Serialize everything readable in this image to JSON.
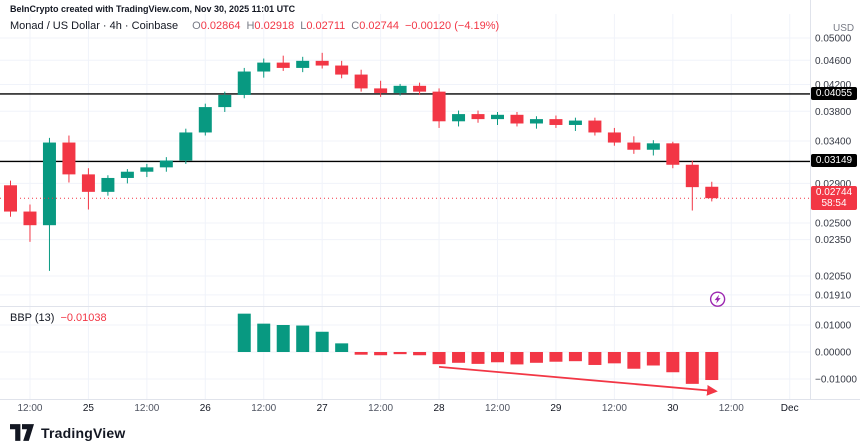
{
  "attribution": "BeInCrypto created with TradingView.com, Nov 30, 2025 11:01 UTC",
  "legend": {
    "title": "Monad / US Dollar · 4h · Coinbase",
    "o_label": "O",
    "o_value": "0.02864",
    "h_label": "H",
    "h_value": "0.02918",
    "l_label": "L",
    "l_value": "0.02711",
    "c_label": "C",
    "c_value": "0.02744",
    "change": "−0.00120 (−4.19%)"
  },
  "indicator": {
    "name": "BBP (13)",
    "value": "−0.01038"
  },
  "price_axis": {
    "currency": "USD",
    "ticks": [
      {
        "label": "0.05000",
        "price": 0.05
      },
      {
        "label": "0.04600",
        "price": 0.046
      },
      {
        "label": "0.04200",
        "price": 0.042
      },
      {
        "label": "0.03800",
        "price": 0.038
      },
      {
        "label": "0.03400",
        "price": 0.034
      },
      {
        "label": "0.02900",
        "price": 0.029
      },
      {
        "label": "0.02500",
        "price": 0.025
      },
      {
        "label": "0.02350",
        "price": 0.0235
      },
      {
        "label": "0.02050",
        "price": 0.0205
      },
      {
        "label": "0.01910",
        "price": 0.0191
      }
    ],
    "levels": [
      {
        "label": "0.04055",
        "price": 0.04055
      },
      {
        "label": "0.03149",
        "price": 0.03149
      }
    ],
    "last": {
      "label": "0.02744",
      "countdown": "58:54",
      "price": 0.02744
    }
  },
  "bbp_axis": {
    "ticks": [
      {
        "label": "0.01000",
        "value": 0.01
      },
      {
        "label": "0.00000",
        "value": 0
      },
      {
        "label": "−0.01000",
        "value": -0.01
      }
    ]
  },
  "time_axis": {
    "labels": [
      {
        "text": "12:00",
        "slot": 2,
        "major": false
      },
      {
        "text": "25",
        "slot": 5,
        "major": true
      },
      {
        "text": "12:00",
        "slot": 8,
        "major": false
      },
      {
        "text": "26",
        "slot": 11,
        "major": true
      },
      {
        "text": "12:00",
        "slot": 14,
        "major": false
      },
      {
        "text": "27",
        "slot": 17,
        "major": true
      },
      {
        "text": "12:00",
        "slot": 20,
        "major": false
      },
      {
        "text": "28",
        "slot": 23,
        "major": true
      },
      {
        "text": "12:00",
        "slot": 26,
        "major": false
      },
      {
        "text": "29",
        "slot": 29,
        "major": true
      },
      {
        "text": "12:00",
        "slot": 32,
        "major": false
      },
      {
        "text": "30",
        "slot": 35,
        "major": true
      },
      {
        "text": "12:00",
        "slot": 38,
        "major": false
      },
      {
        "text": "Dec",
        "slot": 41,
        "major": true
      }
    ]
  },
  "footer": {
    "brand": "TradingView"
  },
  "chart_data": {
    "type": "candlestick",
    "title": "Monad / US Dollar",
    "interval": "4h",
    "exchange": "Coinbase",
    "price_scale": "log",
    "ylim": [
      0.0186,
      0.0519
    ],
    "colors": {
      "up": "#089981",
      "down": "#f23645",
      "grid": "#f0f3fa",
      "level_line": "#000000",
      "last_line": "#f23645"
    },
    "price_levels": [
      0.04055,
      0.03149
    ],
    "last_price": 0.02744,
    "candle_columns": [
      "time",
      "open",
      "high",
      "low",
      "close"
    ],
    "candles": [
      [
        "Nov 24 08:00",
        0.0288,
        0.0293,
        0.0256,
        0.0261
      ],
      [
        "Nov 24 12:00",
        0.0261,
        0.0268,
        0.0233,
        0.0248
      ],
      [
        "Nov 24 16:00",
        0.0248,
        0.0344,
        0.0209,
        0.0338
      ],
      [
        "Nov 24 20:00",
        0.0338,
        0.0347,
        0.0291,
        0.03
      ],
      [
        "Nov 25 00:00",
        0.03,
        0.0307,
        0.0263,
        0.0281
      ],
      [
        "Nov 25 04:00",
        0.0281,
        0.0299,
        0.0277,
        0.0296
      ],
      [
        "Nov 25 08:00",
        0.0296,
        0.0306,
        0.029,
        0.0303
      ],
      [
        "Nov 25 12:00",
        0.0303,
        0.0312,
        0.0297,
        0.0308
      ],
      [
        "Nov 25 16:00",
        0.0308,
        0.032,
        0.0303,
        0.0316
      ],
      [
        "Nov 25 20:00",
        0.0316,
        0.0356,
        0.0312,
        0.0351
      ],
      [
        "Nov 26 00:00",
        0.0351,
        0.0391,
        0.0347,
        0.0386
      ],
      [
        "Nov 26 04:00",
        0.0386,
        0.0409,
        0.0379,
        0.0404
      ],
      [
        "Nov 26 08:00",
        0.0404,
        0.0447,
        0.0399,
        0.0441
      ],
      [
        "Nov 26 12:00",
        0.0441,
        0.0463,
        0.0431,
        0.0456
      ],
      [
        "Nov 26 16:00",
        0.0456,
        0.0468,
        0.0442,
        0.0447
      ],
      [
        "Nov 26 20:00",
        0.0447,
        0.0466,
        0.044,
        0.0459
      ],
      [
        "Nov 27 00:00",
        0.0459,
        0.0473,
        0.0446,
        0.0451
      ],
      [
        "Nov 27 04:00",
        0.0451,
        0.0459,
        0.043,
        0.0436
      ],
      [
        "Nov 27 08:00",
        0.0436,
        0.0444,
        0.0409,
        0.0414
      ],
      [
        "Nov 27 12:00",
        0.0414,
        0.0426,
        0.0401,
        0.0407
      ],
      [
        "Nov 27 16:00",
        0.0407,
        0.0421,
        0.0403,
        0.0418
      ],
      [
        "Nov 27 20:00",
        0.0418,
        0.0423,
        0.0404,
        0.0409
      ],
      [
        "Nov 28 00:00",
        0.0409,
        0.0414,
        0.0357,
        0.0366
      ],
      [
        "Nov 28 04:00",
        0.0366,
        0.0381,
        0.0359,
        0.0376
      ],
      [
        "Nov 28 08:00",
        0.0376,
        0.0381,
        0.0364,
        0.0369
      ],
      [
        "Nov 28 12:00",
        0.0369,
        0.0379,
        0.0361,
        0.0375
      ],
      [
        "Nov 28 16:00",
        0.0375,
        0.0379,
        0.0359,
        0.0363
      ],
      [
        "Nov 28 20:00",
        0.0363,
        0.0373,
        0.0356,
        0.0369
      ],
      [
        "Nov 29 00:00",
        0.0369,
        0.0374,
        0.0357,
        0.0361
      ],
      [
        "Nov 29 04:00",
        0.0361,
        0.0371,
        0.0353,
        0.0367
      ],
      [
        "Nov 29 08:00",
        0.0367,
        0.0371,
        0.0347,
        0.0351
      ],
      [
        "Nov 29 12:00",
        0.0351,
        0.0357,
        0.0334,
        0.0338
      ],
      [
        "Nov 29 16:00",
        0.0338,
        0.0346,
        0.0324,
        0.0329
      ],
      [
        "Nov 29 20:00",
        0.0329,
        0.0341,
        0.0322,
        0.0337
      ],
      [
        "Nov 30 00:00",
        0.0337,
        0.0339,
        0.0307,
        0.0311
      ],
      [
        "Nov 30 04:00",
        0.0311,
        0.0316,
        0.0262,
        0.0286
      ],
      [
        "Nov 30 08:00",
        0.02864,
        0.02918,
        0.02711,
        0.02744
      ]
    ],
    "indicator": {
      "type": "histogram",
      "name": "BBP",
      "length": 13,
      "values": [
        null,
        null,
        null,
        null,
        null,
        null,
        null,
        null,
        null,
        null,
        null,
        null,
        0.0142,
        0.0105,
        0.01,
        0.0098,
        0.0075,
        0.0032,
        -0.001,
        -0.0012,
        -0.0008,
        -0.0012,
        -0.0045,
        -0.004,
        -0.0044,
        -0.0038,
        -0.0046,
        -0.004,
        -0.0036,
        -0.0034,
        -0.0048,
        -0.0042,
        -0.0062,
        -0.005,
        -0.0075,
        -0.0118,
        -0.01038
      ]
    },
    "annotations": {
      "trend_arrow": {
        "from": {
          "slot": 23,
          "value": -0.0055
        },
        "to": {
          "slot": 37.2,
          "value": -0.0145
        },
        "color": "#f23645"
      },
      "flash_icon": {
        "slot": 37.3,
        "price": 0.0188,
        "color": "#9c27b0",
        "glyph": "lightning"
      }
    }
  }
}
